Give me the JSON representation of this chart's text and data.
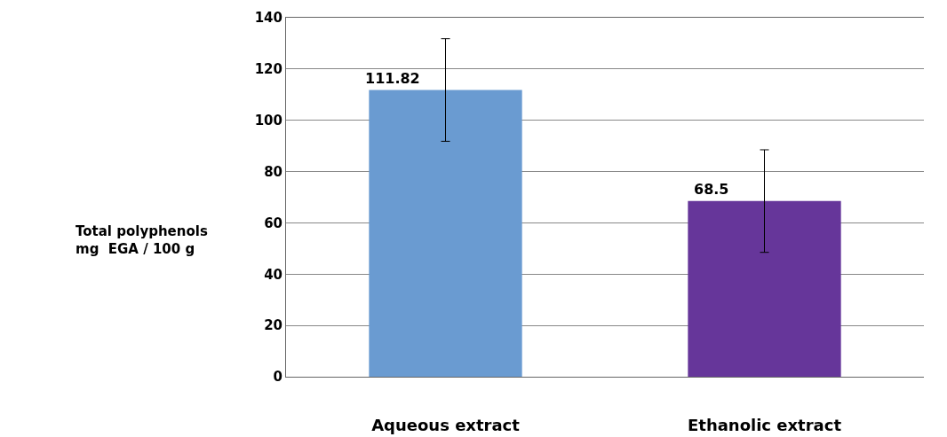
{
  "chart_data": {
    "type": "bar",
    "ylabel": "Total polyphenols\nmg  EGA / 100 g",
    "categories": [
      "Aqueous extract",
      "Ethanolic extract"
    ],
    "values": [
      111.82,
      68.5
    ],
    "colors": [
      "#6a9bd1",
      "#66369a"
    ],
    "errors": [
      20,
      20
    ],
    "value_labels": [
      "111.82",
      "68.5"
    ],
    "ylim": [
      0,
      140
    ],
    "yticks": [
      0,
      20,
      40,
      60,
      80,
      100,
      120,
      140
    ],
    "grid": "y",
    "legend": false
  }
}
